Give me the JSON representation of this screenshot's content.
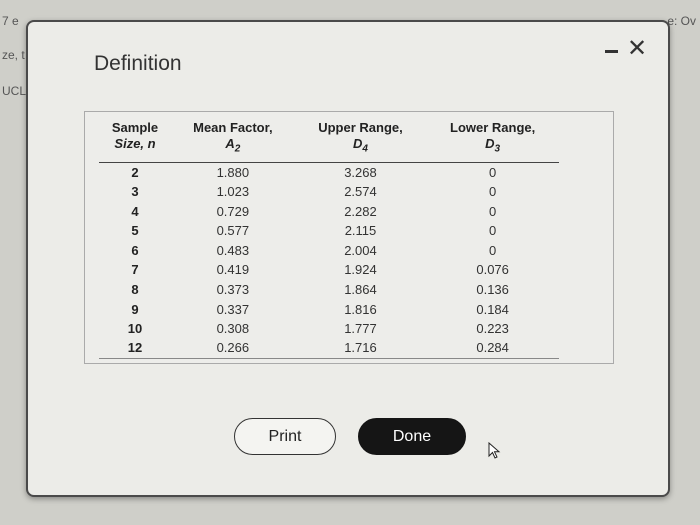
{
  "background": {
    "fragments": [
      "7 e",
      "ze, t",
      "UCL",
      "e: Ov"
    ]
  },
  "dialog": {
    "title": "Definition",
    "controls": {
      "minimize_icon": "minimize-icon",
      "close_icon": "close-icon",
      "close_glyph": "✕"
    },
    "table": {
      "headers": [
        {
          "label": "Sample",
          "sub": "Size, n"
        },
        {
          "label": "Mean Factor,",
          "sub": "A2"
        },
        {
          "label": "Upper Range,",
          "sub": "D4"
        },
        {
          "label": "Lower Range,",
          "sub": "D3"
        }
      ],
      "rows": [
        [
          "2",
          "1.880",
          "3.268",
          "0"
        ],
        [
          "3",
          "1.023",
          "2.574",
          "0"
        ],
        [
          "4",
          "0.729",
          "2.282",
          "0"
        ],
        [
          "5",
          "0.577",
          "2.115",
          "0"
        ],
        [
          "6",
          "0.483",
          "2.004",
          "0"
        ],
        [
          "7",
          "0.419",
          "1.924",
          "0.076"
        ],
        [
          "8",
          "0.373",
          "1.864",
          "0.136"
        ],
        [
          "9",
          "0.337",
          "1.816",
          "0.184"
        ],
        [
          "10",
          "0.308",
          "1.777",
          "0.223"
        ],
        [
          "12",
          "0.266",
          "1.716",
          "0.284"
        ]
      ]
    },
    "buttons": {
      "print": "Print",
      "done": "Done"
    }
  },
  "colors": {
    "dialog_bg": "#ecece8",
    "done_bg": "#151515",
    "done_text": "#ffffff"
  }
}
